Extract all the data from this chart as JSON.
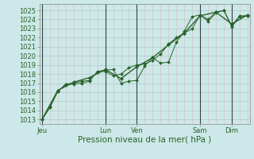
{
  "bg_color": "#cce8e8",
  "plot_bg_color": "#cce8e8",
  "grid_major_color": "#aacccc",
  "grid_minor_color": "#ddbbbb",
  "line_color": "#2a622a",
  "marker_color": "#2a622a",
  "tick_color": "#2a622a",
  "xlabel": "Pression niveau de la mer( hPa )",
  "xlabel_color": "#2a622a",
  "xlabel_fontsize": 7.5,
  "tick_fontsize": 6.0,
  "ylim": [
    1012.5,
    1025.7
  ],
  "yticks": [
    1013,
    1014,
    1015,
    1016,
    1017,
    1018,
    1019,
    1020,
    1021,
    1022,
    1023,
    1024,
    1025
  ],
  "day_positions": [
    0,
    48,
    72,
    120,
    144
  ],
  "day_labels": [
    "Jeu",
    "Lun",
    "Ven",
    "Sam",
    "Dim"
  ],
  "xlim": [
    -2,
    158
  ],
  "series1_x": [
    0,
    6,
    12,
    18,
    24,
    30,
    36,
    42,
    48,
    54,
    60,
    66,
    72,
    78,
    84,
    90,
    96,
    102,
    108,
    114,
    120,
    126,
    132,
    138,
    144,
    150,
    156
  ],
  "series1_y": [
    1013.0,
    1014.3,
    1016.1,
    1016.8,
    1016.9,
    1017.0,
    1017.2,
    1018.3,
    1018.4,
    1018.5,
    1017.0,
    1017.2,
    1017.3,
    1018.9,
    1019.8,
    1019.2,
    1019.3,
    1021.5,
    1022.7,
    1024.3,
    1024.5,
    1023.8,
    1024.7,
    1025.0,
    1023.3,
    1024.4,
    1024.4
  ],
  "series2_x": [
    0,
    6,
    12,
    18,
    24,
    30,
    36,
    42,
    48,
    54,
    60,
    66,
    72,
    78,
    84,
    90,
    96,
    102,
    108,
    114,
    120,
    126,
    132,
    138,
    144,
    150,
    156
  ],
  "series2_y": [
    1013.0,
    1014.4,
    1016.1,
    1016.9,
    1017.0,
    1017.2,
    1017.3,
    1018.2,
    1018.3,
    1017.8,
    1018.0,
    1018.7,
    1019.0,
    1019.1,
    1019.5,
    1020.2,
    1021.3,
    1022.0,
    1022.5,
    1023.0,
    1024.5,
    1024.0,
    1024.8,
    1025.0,
    1023.2,
    1024.3,
    1024.4
  ],
  "series3_x": [
    0,
    12,
    24,
    36,
    48,
    60,
    72,
    84,
    96,
    108,
    120,
    132,
    144,
    156
  ],
  "series3_y": [
    1013.0,
    1016.2,
    1017.1,
    1017.6,
    1018.5,
    1017.5,
    1018.8,
    1019.8,
    1021.2,
    1022.5,
    1024.4,
    1024.8,
    1023.5,
    1024.5
  ]
}
